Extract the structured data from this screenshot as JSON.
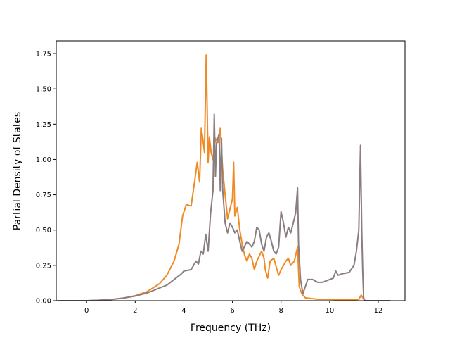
{
  "chart_data": {
    "type": "line",
    "title": "",
    "xlabel": "Frequency (THz)",
    "ylabel": "Partial Density of States",
    "xlim": [
      -1.25,
      13.1
    ],
    "ylim": [
      0.0,
      1.84
    ],
    "xticks": [
      0,
      2,
      4,
      6,
      8,
      10,
      12
    ],
    "yticks": [
      0.0,
      0.25,
      0.5,
      0.75,
      1.0,
      1.25,
      1.5,
      1.75
    ],
    "xtick_labels": [
      "0",
      "2",
      "4",
      "6",
      "8",
      "10",
      "12"
    ],
    "ytick_labels": [
      "0.00",
      "0.25",
      "0.50",
      "0.75",
      "1.00",
      "1.25",
      "1.50",
      "1.75"
    ],
    "grid": false,
    "legend": "none",
    "series": [
      {
        "color": "#f08a24",
        "points": [
          [
            -1.2,
            0.0
          ],
          [
            0.0,
            0.0
          ],
          [
            0.5,
            0.003
          ],
          [
            1.0,
            0.008
          ],
          [
            1.5,
            0.018
          ],
          [
            2.0,
            0.035
          ],
          [
            2.5,
            0.065
          ],
          [
            3.0,
            0.12
          ],
          [
            3.3,
            0.18
          ],
          [
            3.6,
            0.28
          ],
          [
            3.8,
            0.4
          ],
          [
            3.95,
            0.6
          ],
          [
            4.1,
            0.68
          ],
          [
            4.3,
            0.67
          ],
          [
            4.45,
            0.85
          ],
          [
            4.55,
            0.98
          ],
          [
            4.65,
            0.84
          ],
          [
            4.72,
            1.22
          ],
          [
            4.78,
            1.15
          ],
          [
            4.85,
            1.05
          ],
          [
            4.92,
            1.74
          ],
          [
            5.0,
            0.98
          ],
          [
            5.05,
            1.16
          ],
          [
            5.12,
            1.05
          ],
          [
            5.2,
            1.0
          ],
          [
            5.3,
            1.15
          ],
          [
            5.4,
            1.12
          ],
          [
            5.5,
            1.22
          ],
          [
            5.6,
            0.92
          ],
          [
            5.7,
            0.75
          ],
          [
            5.8,
            0.58
          ],
          [
            5.9,
            0.65
          ],
          [
            6.0,
            0.72
          ],
          [
            6.05,
            0.98
          ],
          [
            6.1,
            0.6
          ],
          [
            6.2,
            0.66
          ],
          [
            6.3,
            0.5
          ],
          [
            6.4,
            0.4
          ],
          [
            6.5,
            0.32
          ],
          [
            6.6,
            0.28
          ],
          [
            6.7,
            0.33
          ],
          [
            6.8,
            0.3
          ],
          [
            6.9,
            0.22
          ],
          [
            7.0,
            0.28
          ],
          [
            7.2,
            0.35
          ],
          [
            7.3,
            0.3
          ],
          [
            7.35,
            0.22
          ],
          [
            7.45,
            0.16
          ],
          [
            7.55,
            0.28
          ],
          [
            7.7,
            0.3
          ],
          [
            7.8,
            0.24
          ],
          [
            7.9,
            0.18
          ],
          [
            8.0,
            0.22
          ],
          [
            8.1,
            0.25
          ],
          [
            8.2,
            0.28
          ],
          [
            8.3,
            0.3
          ],
          [
            8.4,
            0.25
          ],
          [
            8.55,
            0.28
          ],
          [
            8.68,
            0.38
          ],
          [
            8.75,
            0.1
          ],
          [
            8.85,
            0.05
          ],
          [
            9.0,
            0.02
          ],
          [
            9.5,
            0.01
          ],
          [
            10.0,
            0.01
          ],
          [
            10.5,
            0.005
          ],
          [
            11.0,
            0.005
          ],
          [
            11.2,
            0.01
          ],
          [
            11.3,
            0.04
          ],
          [
            11.4,
            0.01
          ],
          [
            11.45,
            0.0
          ],
          [
            12.5,
            0.0
          ]
        ]
      },
      {
        "color": "#8c7d7f",
        "points": [
          [
            -1.2,
            0.0
          ],
          [
            0.0,
            0.0
          ],
          [
            0.5,
            0.003
          ],
          [
            1.0,
            0.008
          ],
          [
            1.5,
            0.018
          ],
          [
            2.0,
            0.033
          ],
          [
            2.5,
            0.055
          ],
          [
            3.0,
            0.09
          ],
          [
            3.3,
            0.11
          ],
          [
            3.6,
            0.15
          ],
          [
            3.9,
            0.19
          ],
          [
            4.0,
            0.21
          ],
          [
            4.3,
            0.22
          ],
          [
            4.5,
            0.28
          ],
          [
            4.6,
            0.26
          ],
          [
            4.7,
            0.35
          ],
          [
            4.8,
            0.33
          ],
          [
            4.9,
            0.47
          ],
          [
            5.0,
            0.35
          ],
          [
            5.1,
            0.62
          ],
          [
            5.2,
            0.78
          ],
          [
            5.25,
            1.32
          ],
          [
            5.3,
            0.88
          ],
          [
            5.35,
            1.12
          ],
          [
            5.45,
            1.18
          ],
          [
            5.5,
            0.78
          ],
          [
            5.55,
            1.15
          ],
          [
            5.6,
            0.78
          ],
          [
            5.7,
            0.55
          ],
          [
            5.8,
            0.48
          ],
          [
            5.9,
            0.55
          ],
          [
            6.0,
            0.52
          ],
          [
            6.1,
            0.48
          ],
          [
            6.2,
            0.5
          ],
          [
            6.3,
            0.42
          ],
          [
            6.4,
            0.35
          ],
          [
            6.6,
            0.42
          ],
          [
            6.8,
            0.38
          ],
          [
            6.9,
            0.42
          ],
          [
            7.0,
            0.52
          ],
          [
            7.1,
            0.5
          ],
          [
            7.2,
            0.4
          ],
          [
            7.3,
            0.35
          ],
          [
            7.4,
            0.45
          ],
          [
            7.5,
            0.48
          ],
          [
            7.6,
            0.42
          ],
          [
            7.7,
            0.35
          ],
          [
            7.8,
            0.33
          ],
          [
            7.9,
            0.38
          ],
          [
            8.0,
            0.63
          ],
          [
            8.1,
            0.55
          ],
          [
            8.2,
            0.45
          ],
          [
            8.3,
            0.52
          ],
          [
            8.4,
            0.48
          ],
          [
            8.5,
            0.55
          ],
          [
            8.6,
            0.62
          ],
          [
            8.68,
            0.8
          ],
          [
            8.72,
            0.4
          ],
          [
            8.8,
            0.15
          ],
          [
            8.9,
            0.05
          ],
          [
            9.0,
            0.1
          ],
          [
            9.1,
            0.15
          ],
          [
            9.3,
            0.15
          ],
          [
            9.5,
            0.13
          ],
          [
            9.7,
            0.13
          ],
          [
            10.0,
            0.15
          ],
          [
            10.15,
            0.16
          ],
          [
            10.25,
            0.21
          ],
          [
            10.35,
            0.18
          ],
          [
            10.5,
            0.19
          ],
          [
            10.8,
            0.2
          ],
          [
            11.0,
            0.25
          ],
          [
            11.1,
            0.35
          ],
          [
            11.2,
            0.5
          ],
          [
            11.27,
            1.1
          ],
          [
            11.32,
            0.5
          ],
          [
            11.36,
            0.2
          ],
          [
            11.4,
            0.02
          ],
          [
            11.45,
            0.0
          ],
          [
            12.5,
            0.0
          ]
        ]
      }
    ]
  }
}
